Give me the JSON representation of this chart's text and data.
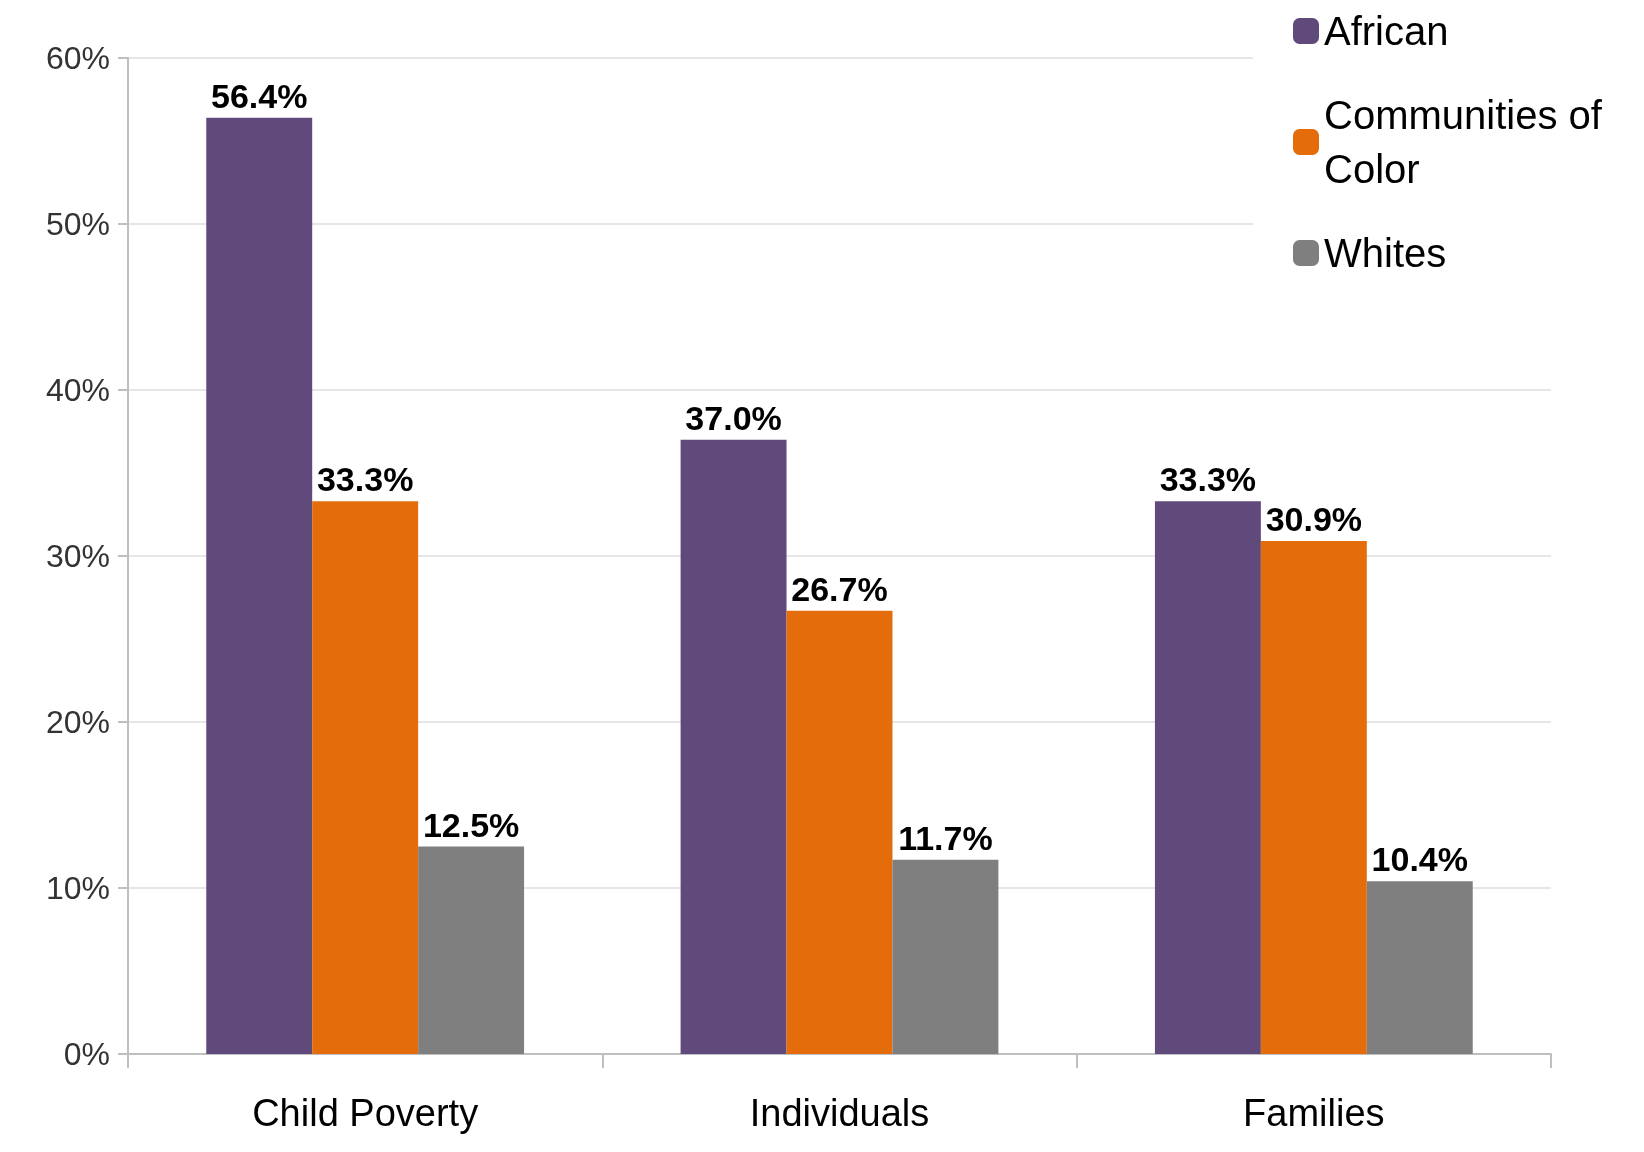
{
  "chart_data": {
    "type": "bar",
    "categories": [
      "Child Poverty",
      "Individuals",
      "Families"
    ],
    "series": [
      {
        "name": "African",
        "color": "#604a7b",
        "values": [
          56.4,
          37.0,
          33.3
        ],
        "value_labels": [
          "56.4%",
          "37.0%",
          "33.3%"
        ]
      },
      {
        "name": "Communities of Color",
        "color": "#e46c0a",
        "values": [
          33.3,
          26.7,
          30.9
        ],
        "value_labels": [
          "33.3%",
          "26.7%",
          "30.9%"
        ]
      },
      {
        "name": "Whites",
        "color": "#7f7f7f",
        "values": [
          12.5,
          11.7,
          10.4
        ],
        "value_labels": [
          "12.5%",
          "11.7%",
          "10.4%"
        ]
      }
    ],
    "ylim": [
      0,
      60
    ],
    "yticks": [
      {
        "value": 0,
        "label": "0%"
      },
      {
        "value": 10,
        "label": "10%"
      },
      {
        "value": 20,
        "label": "20%"
      },
      {
        "value": 30,
        "label": "30%"
      },
      {
        "value": 40,
        "label": "40%"
      },
      {
        "value": 50,
        "label": "50%"
      },
      {
        "value": 60,
        "label": "60%"
      }
    ],
    "grid": "y",
    "legend": "top right"
  }
}
